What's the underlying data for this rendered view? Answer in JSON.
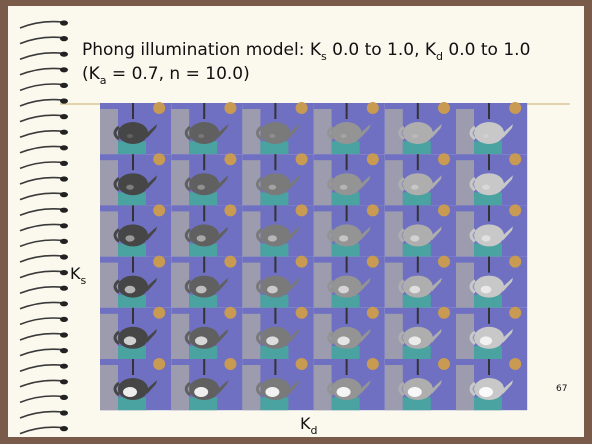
{
  "slide": {
    "title": {
      "line1": [
        {
          "text": "Phong illumination model: K"
        },
        {
          "sub": "s"
        },
        {
          "text": " 0.0 to 1.0, K"
        },
        {
          "sub": "d"
        },
        {
          "text": " 0.0 to 1.0"
        }
      ],
      "line2": [
        {
          "text": "(K"
        },
        {
          "sub": "a"
        },
        {
          "text": " = 0.7, n = 10.0)"
        }
      ]
    },
    "ks_label": {
      "text": "K",
      "sub": "s"
    },
    "kd_label": {
      "text": "K",
      "sub": "d"
    },
    "page_number": "67"
  }
}
